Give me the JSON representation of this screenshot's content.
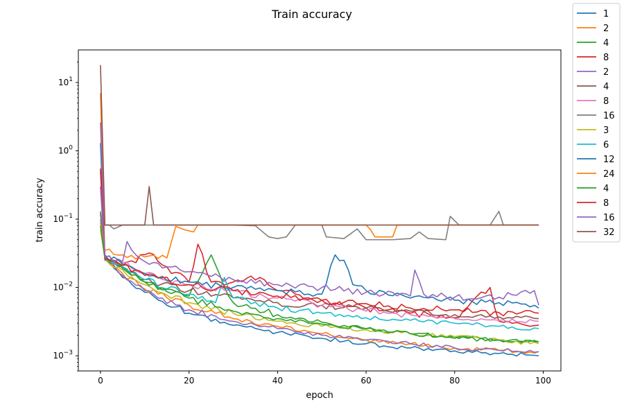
{
  "chart_data": {
    "type": "line",
    "title": "Train accuracy",
    "xlabel": "epoch",
    "ylabel": "train accuracy",
    "yscale": "log",
    "xlim": [
      -5,
      104
    ],
    "ylim": [
      0.0006,
      30
    ],
    "x_ticks": [
      0,
      20,
      40,
      60,
      80,
      100
    ],
    "y_ticks": [
      {
        "value": 0.001,
        "base": "10",
        "exp": "−3"
      },
      {
        "value": 0.01,
        "base": "10",
        "exp": "−2"
      },
      {
        "value": 0.1,
        "base": "10",
        "exp": "−1"
      },
      {
        "value": 1,
        "base": "10",
        "exp": "0"
      },
      {
        "value": 10,
        "base": "10",
        "exp": "1"
      }
    ],
    "grid": false,
    "legend_position": "outside upper right",
    "series": [
      {
        "name": "1",
        "color": "#1f77b4",
        "start": 1.3,
        "points": [
          [
            1,
            0.025
          ],
          [
            5,
            0.014
          ],
          [
            10,
            0.0085
          ],
          [
            20,
            0.0042
          ],
          [
            30,
            0.0028
          ],
          [
            40,
            0.0022
          ],
          [
            50,
            0.0018
          ],
          [
            60,
            0.0015
          ],
          [
            70,
            0.0013
          ],
          [
            80,
            0.00118
          ],
          [
            90,
            0.00108
          ],
          [
            99,
            0.001
          ]
        ]
      },
      {
        "name": "2",
        "color": "#ff7f0e",
        "start": 7.0,
        "points": [
          [
            1,
            0.027
          ],
          [
            5,
            0.016
          ],
          [
            10,
            0.0095
          ],
          [
            20,
            0.0055
          ],
          [
            30,
            0.0035
          ],
          [
            40,
            0.0027
          ],
          [
            50,
            0.0021
          ],
          [
            60,
            0.0017
          ],
          [
            70,
            0.0015
          ],
          [
            80,
            0.0013
          ],
          [
            90,
            0.0012
          ],
          [
            99,
            0.00115
          ]
        ]
      },
      {
        "name": "4",
        "color": "#2ca02c",
        "start": 0.13,
        "points": [
          [
            1,
            0.028
          ],
          [
            5,
            0.02
          ],
          [
            10,
            0.012
          ],
          [
            20,
            0.0075
          ],
          [
            25,
            0.03
          ],
          [
            28,
            0.01
          ],
          [
            30,
            0.006
          ],
          [
            40,
            0.004
          ],
          [
            50,
            0.0031
          ],
          [
            60,
            0.0025
          ],
          [
            70,
            0.0021
          ],
          [
            80,
            0.0019
          ],
          [
            90,
            0.0017
          ],
          [
            99,
            0.0016
          ]
        ]
      },
      {
        "name": "8",
        "color": "#d62728",
        "start": 0.55,
        "points": [
          [
            1,
            0.028
          ],
          [
            5,
            0.021
          ],
          [
            11,
            0.032
          ],
          [
            15,
            0.02
          ],
          [
            20,
            0.012
          ],
          [
            22,
            0.043
          ],
          [
            25,
            0.012
          ],
          [
            30,
            0.012
          ],
          [
            36,
            0.014
          ],
          [
            40,
            0.009
          ],
          [
            50,
            0.0065
          ],
          [
            60,
            0.005
          ],
          [
            70,
            0.0042
          ],
          [
            80,
            0.0036
          ],
          [
            88,
            0.01
          ],
          [
            90,
            0.0032
          ],
          [
            99,
            0.0028
          ]
        ]
      },
      {
        "name": "2",
        "color": "#9467bd",
        "start": 2.6,
        "points": [
          [
            1,
            0.026
          ],
          [
            5,
            0.015
          ],
          [
            10,
            0.009
          ],
          [
            20,
            0.0047
          ],
          [
            30,
            0.0032
          ],
          [
            40,
            0.0025
          ],
          [
            50,
            0.002
          ],
          [
            60,
            0.0017
          ],
          [
            70,
            0.0015
          ],
          [
            80,
            0.0013
          ],
          [
            90,
            0.0012
          ],
          [
            99,
            0.00115
          ]
        ]
      },
      {
        "name": "4",
        "color": "#8c564b",
        "start": 0.12,
        "points": [
          [
            1,
            0.03
          ],
          [
            5,
            0.02
          ],
          [
            10,
            0.013
          ],
          [
            20,
            0.009
          ],
          [
            30,
            0.007
          ],
          [
            40,
            0.006
          ],
          [
            50,
            0.0055
          ],
          [
            60,
            0.005
          ],
          [
            70,
            0.0045
          ],
          [
            80,
            0.004
          ],
          [
            90,
            0.0037
          ],
          [
            99,
            0.0035
          ]
        ]
      },
      {
        "name": "8",
        "color": "#e377c2",
        "start": 0.3,
        "points": [
          [
            1,
            0.027
          ],
          [
            5,
            0.023
          ],
          [
            10,
            0.016
          ],
          [
            20,
            0.011
          ],
          [
            30,
            0.009
          ],
          [
            40,
            0.007
          ],
          [
            50,
            0.0055
          ],
          [
            60,
            0.0045
          ],
          [
            70,
            0.004
          ],
          [
            80,
            0.0035
          ],
          [
            90,
            0.0033
          ],
          [
            99,
            0.0032
          ]
        ]
      },
      {
        "name": "16",
        "color": "#7f7f7f",
        "start": 0.08,
        "points": [
          [
            1,
            0.082
          ],
          [
            2,
            0.082
          ],
          [
            3,
            0.072
          ],
          [
            5,
            0.082
          ],
          [
            10,
            0.082
          ],
          [
            20,
            0.082
          ],
          [
            30,
            0.082
          ],
          [
            35,
            0.08
          ],
          [
            38,
            0.055
          ],
          [
            40,
            0.052
          ],
          [
            42,
            0.055
          ],
          [
            44,
            0.082
          ],
          [
            50,
            0.082
          ],
          [
            51,
            0.055
          ],
          [
            55,
            0.052
          ],
          [
            58,
            0.072
          ],
          [
            60,
            0.05
          ],
          [
            66,
            0.05
          ],
          [
            70,
            0.052
          ],
          [
            72,
            0.065
          ],
          [
            74,
            0.052
          ],
          [
            78,
            0.05
          ],
          [
            79,
            0.11
          ],
          [
            81,
            0.082
          ],
          [
            88,
            0.082
          ],
          [
            90,
            0.13
          ],
          [
            91,
            0.082
          ],
          [
            99,
            0.082
          ]
        ]
      },
      {
        "name": "3",
        "color": "#bcbd22",
        "start": 0.07,
        "points": [
          [
            1,
            0.026
          ],
          [
            5,
            0.018
          ],
          [
            10,
            0.011
          ],
          [
            20,
            0.006
          ],
          [
            30,
            0.0042
          ],
          [
            40,
            0.0032
          ],
          [
            50,
            0.0027
          ],
          [
            60,
            0.0024
          ],
          [
            70,
            0.0021
          ],
          [
            80,
            0.0019
          ],
          [
            90,
            0.0017
          ],
          [
            99,
            0.0015
          ]
        ]
      },
      {
        "name": "6",
        "color": "#17becf",
        "start": 0.1,
        "points": [
          [
            1,
            0.027
          ],
          [
            5,
            0.02
          ],
          [
            10,
            0.013
          ],
          [
            20,
            0.008
          ],
          [
            26,
            0.006
          ],
          [
            28,
            0.014
          ],
          [
            30,
            0.007
          ],
          [
            40,
            0.005
          ],
          [
            50,
            0.0042
          ],
          [
            60,
            0.0036
          ],
          [
            70,
            0.0033
          ],
          [
            80,
            0.003
          ],
          [
            90,
            0.0027
          ],
          [
            99,
            0.0025
          ]
        ]
      },
      {
        "name": "12",
        "color": "#1f77b4",
        "start": 0.09,
        "points": [
          [
            1,
            0.03
          ],
          [
            5,
            0.022
          ],
          [
            10,
            0.016
          ],
          [
            20,
            0.012
          ],
          [
            30,
            0.01
          ],
          [
            40,
            0.009
          ],
          [
            50,
            0.008
          ],
          [
            53,
            0.03
          ],
          [
            55,
            0.025
          ],
          [
            57,
            0.011
          ],
          [
            60,
            0.009
          ],
          [
            70,
            0.007
          ],
          [
            80,
            0.0065
          ],
          [
            90,
            0.006
          ],
          [
            99,
            0.005
          ]
        ]
      },
      {
        "name": "24",
        "color": "#ff7f0e",
        "start": 0.09,
        "points": [
          [
            1,
            0.035
          ],
          [
            5,
            0.03
          ],
          [
            10,
            0.028
          ],
          [
            15,
            0.027
          ],
          [
            17,
            0.078
          ],
          [
            19,
            0.07
          ],
          [
            21,
            0.065
          ],
          [
            22,
            0.082
          ],
          [
            30,
            0.082
          ],
          [
            50,
            0.082
          ],
          [
            60,
            0.082
          ],
          [
            61,
            0.07
          ],
          [
            62,
            0.055
          ],
          [
            66,
            0.055
          ],
          [
            67,
            0.082
          ],
          [
            99,
            0.082
          ]
        ]
      },
      {
        "name": "4",
        "color": "#2ca02c",
        "start": 0.08,
        "points": [
          [
            1,
            0.027
          ],
          [
            5,
            0.019
          ],
          [
            10,
            0.012
          ],
          [
            20,
            0.007
          ],
          [
            30,
            0.0045
          ],
          [
            40,
            0.0035
          ],
          [
            50,
            0.0029
          ],
          [
            60,
            0.0025
          ],
          [
            70,
            0.0021
          ],
          [
            80,
            0.0018
          ],
          [
            90,
            0.0017
          ],
          [
            99,
            0.0016
          ]
        ]
      },
      {
        "name": "8",
        "color": "#d62728",
        "start": 0.5,
        "points": [
          [
            1,
            0.026
          ],
          [
            5,
            0.021
          ],
          [
            10,
            0.015
          ],
          [
            20,
            0.011
          ],
          [
            30,
            0.009
          ],
          [
            40,
            0.0075
          ],
          [
            50,
            0.0065
          ],
          [
            60,
            0.0058
          ],
          [
            70,
            0.005
          ],
          [
            80,
            0.0047
          ],
          [
            90,
            0.0043
          ],
          [
            99,
            0.0042
          ]
        ]
      },
      {
        "name": "16",
        "color": "#9467bd",
        "start": 0.3,
        "points": [
          [
            1,
            0.028
          ],
          [
            5,
            0.024
          ],
          [
            6,
            0.047
          ],
          [
            8,
            0.03
          ],
          [
            10,
            0.024
          ],
          [
            20,
            0.017
          ],
          [
            30,
            0.013
          ],
          [
            40,
            0.011
          ],
          [
            50,
            0.01
          ],
          [
            60,
            0.0085
          ],
          [
            70,
            0.0075
          ],
          [
            71,
            0.018
          ],
          [
            73,
            0.008
          ],
          [
            80,
            0.0072
          ],
          [
            90,
            0.0072
          ],
          [
            98,
            0.009
          ],
          [
            99,
            0.0055
          ]
        ]
      },
      {
        "name": "32",
        "color": "#8c564b",
        "start": 18.0,
        "points": [
          [
            1,
            0.082
          ],
          [
            5,
            0.082
          ],
          [
            10,
            0.082
          ],
          [
            11,
            0.3
          ],
          [
            12,
            0.082
          ],
          [
            20,
            0.082
          ],
          [
            40,
            0.082
          ],
          [
            60,
            0.082
          ],
          [
            80,
            0.082
          ],
          [
            99,
            0.082
          ]
        ]
      }
    ]
  }
}
